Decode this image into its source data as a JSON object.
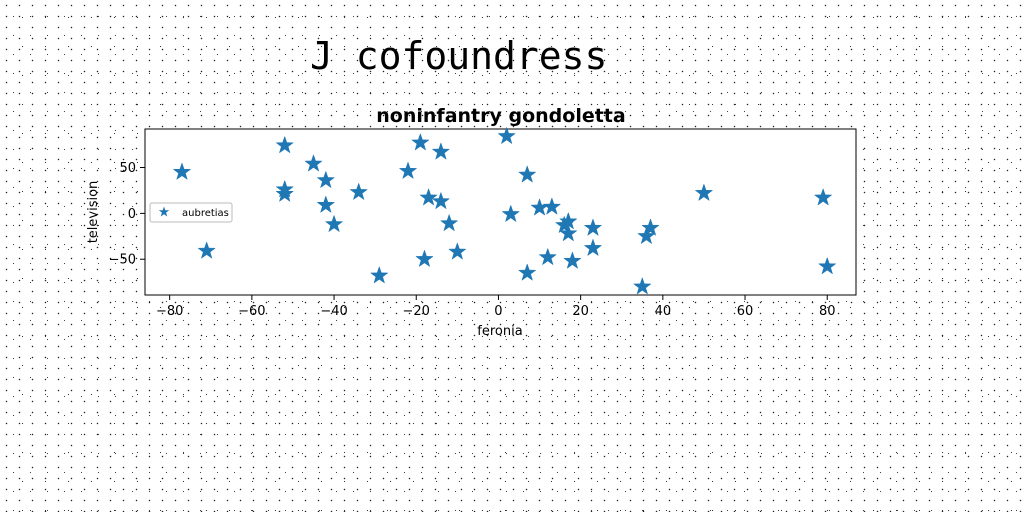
{
  "page_title": "J cofoundress",
  "chart_data": {
    "type": "scatter",
    "title": "noninfantry gondoletta",
    "xlabel": "feronia",
    "ylabel": "television",
    "xlim": [
      -86,
      87
    ],
    "ylim": [
      -89,
      92
    ],
    "xticks": [
      -80,
      -60,
      -40,
      -20,
      0,
      20,
      40,
      60,
      80
    ],
    "yticks": [
      -50,
      0,
      50
    ],
    "grid": false,
    "legend_position": "center-left",
    "series": [
      {
        "name": "aubretias",
        "color": "#1f77b4",
        "marker": "star",
        "points": [
          {
            "x": -77,
            "y": 45
          },
          {
            "x": -71,
            "y": -41
          },
          {
            "x": -52,
            "y": 74
          },
          {
            "x": -52,
            "y": 26
          },
          {
            "x": -52,
            "y": 21
          },
          {
            "x": -45,
            "y": 54
          },
          {
            "x": -42,
            "y": 36
          },
          {
            "x": -42,
            "y": 9
          },
          {
            "x": -40,
            "y": -12
          },
          {
            "x": -34,
            "y": 23
          },
          {
            "x": -29,
            "y": -68
          },
          {
            "x": -22,
            "y": 46
          },
          {
            "x": -19,
            "y": 77
          },
          {
            "x": -18,
            "y": -50
          },
          {
            "x": -17,
            "y": 17
          },
          {
            "x": -14,
            "y": 67
          },
          {
            "x": -14,
            "y": 13
          },
          {
            "x": -12,
            "y": -11
          },
          {
            "x": -10,
            "y": -42
          },
          {
            "x": 2,
            "y": 84
          },
          {
            "x": 3,
            "y": -1
          },
          {
            "x": 7,
            "y": 42
          },
          {
            "x": 7,
            "y": -65
          },
          {
            "x": 10,
            "y": 6
          },
          {
            "x": 12,
            "y": -48
          },
          {
            "x": 13,
            "y": 7
          },
          {
            "x": 16,
            "y": -13
          },
          {
            "x": 17,
            "y": -9
          },
          {
            "x": 17,
            "y": -22
          },
          {
            "x": 18,
            "y": -52
          },
          {
            "x": 23,
            "y": -16
          },
          {
            "x": 23,
            "y": -38
          },
          {
            "x": 35,
            "y": -80
          },
          {
            "x": 36,
            "y": -25
          },
          {
            "x": 37,
            "y": -16
          },
          {
            "x": 50,
            "y": 22
          },
          {
            "x": 79,
            "y": 17
          },
          {
            "x": 80,
            "y": -58
          }
        ]
      }
    ]
  }
}
